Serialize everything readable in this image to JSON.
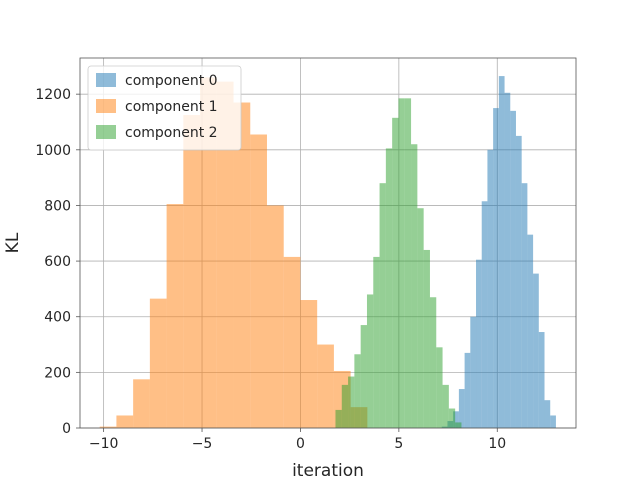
{
  "chart_data": {
    "type": "histogram",
    "xlabel": "iteration",
    "ylabel": "KL",
    "xlim": [
      -11.2,
      14.0
    ],
    "ylim": [
      0,
      1330
    ],
    "xticks": [
      -10,
      -5,
      0,
      5,
      10
    ],
    "xtick_labels": [
      "−10",
      "−5",
      "0",
      "5",
      "10"
    ],
    "yticks": [
      0,
      200,
      400,
      600,
      800,
      1000,
      1200
    ],
    "grid": true,
    "legend_position": "upper-left",
    "colors": [
      "#1f77b4",
      "#ff7f0e",
      "#2ca02c"
    ],
    "series": [
      {
        "name": "component 0",
        "color": "#1f77b4",
        "bin_edges": [
          7.18,
          7.47,
          7.76,
          8.05,
          8.34,
          8.63,
          8.92,
          9.21,
          9.5,
          9.79,
          10.08,
          10.37,
          10.66,
          10.95,
          11.24,
          11.53,
          11.82,
          12.11,
          12.4,
          12.69,
          12.98
        ],
        "counts": [
          5,
          25,
          60,
          140,
          270,
          400,
          605,
          815,
          1000,
          1150,
          1265,
          1205,
          1140,
          1050,
          880,
          695,
          555,
          345,
          100,
          45
        ]
      },
      {
        "name": "component 1",
        "color": "#ff7f0e",
        "bin_edges": [
          -10.2,
          -9.35,
          -8.5,
          -7.65,
          -6.8,
          -5.95,
          -5.1,
          -4.25,
          -3.4,
          -2.55,
          -1.7,
          -0.85,
          0.0,
          0.85,
          1.7,
          2.55,
          3.4
        ],
        "counts": [
          5,
          45,
          175,
          465,
          805,
          1125,
          1260,
          1245,
          1170,
          1055,
          800,
          615,
          460,
          300,
          205,
          75
        ]
      },
      {
        "name": "component 2",
        "color": "#2ca02c",
        "bin_edges": [
          1.78,
          2.1,
          2.42,
          2.74,
          3.06,
          3.38,
          3.7,
          4.02,
          4.34,
          4.66,
          4.98,
          5.3,
          5.62,
          5.94,
          6.26,
          6.58,
          6.9,
          7.22,
          7.54,
          7.86,
          8.18
        ],
        "counts": [
          65,
          155,
          185,
          265,
          370,
          480,
          615,
          880,
          1005,
          1115,
          1185,
          1185,
          1020,
          790,
          640,
          470,
          290,
          155,
          70,
          20
        ]
      }
    ]
  }
}
